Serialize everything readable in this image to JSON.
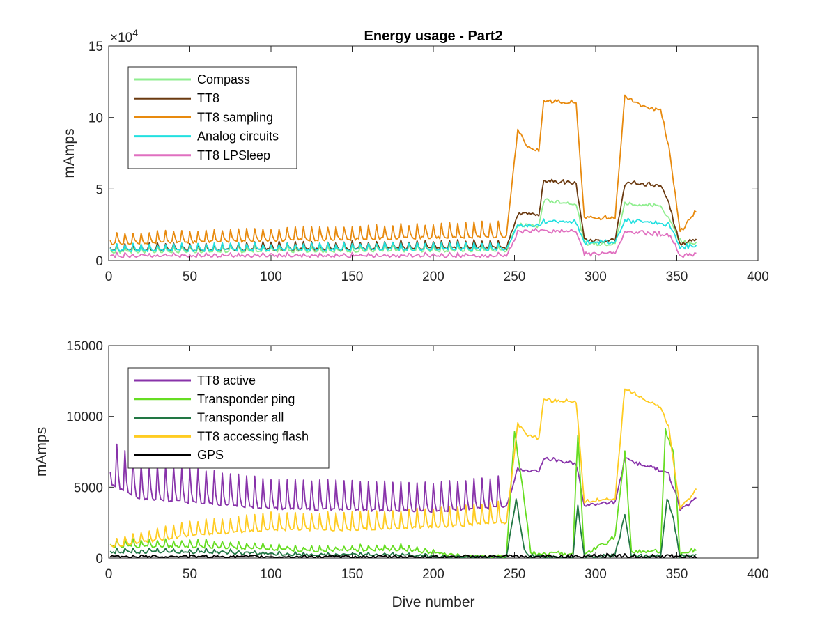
{
  "chart_data": [
    {
      "type": "line",
      "title": "Energy usage - Part2",
      "xlabel": "",
      "ylabel": "mAmps",
      "xlim": [
        0,
        400
      ],
      "ylim": [
        0,
        150000
      ],
      "xticks": [
        0,
        50,
        100,
        150,
        200,
        250,
        300,
        350,
        400
      ],
      "yticks": [
        0,
        50000,
        100000,
        150000
      ],
      "ytick_labels": [
        "0",
        "5",
        "10",
        "15"
      ],
      "exponent_label": "×10",
      "exponent_power": "4",
      "grid": false,
      "legend_position": "top-left",
      "series": [
        {
          "name": "Compass",
          "color": "#90ee90",
          "points": [
            [
              1,
              6000
            ],
            [
              245,
              7000
            ],
            [
              252,
              25000
            ],
            [
              265,
              24000
            ],
            [
              268,
              42000
            ],
            [
              288,
              40000
            ],
            [
              293,
              12000
            ],
            [
              312,
              12000
            ],
            [
              318,
              40000
            ],
            [
              340,
              38000
            ],
            [
              345,
              30000
            ],
            [
              352,
              14000
            ],
            [
              362,
              12000
            ]
          ]
        },
        {
          "name": "TT8",
          "color": "#6b3a10",
          "points": [
            [
              1,
              7000
            ],
            [
              245,
              9000
            ],
            [
              252,
              33000
            ],
            [
              265,
              32000
            ],
            [
              268,
              56000
            ],
            [
              288,
              54000
            ],
            [
              293,
              14000
            ],
            [
              312,
              14000
            ],
            [
              318,
              54000
            ],
            [
              340,
              53000
            ],
            [
              345,
              40000
            ],
            [
              352,
              11000
            ],
            [
              362,
              15000
            ]
          ]
        },
        {
          "name": "TT8 sampling",
          "color": "#e88a0e",
          "points": [
            [
              1,
              12000
            ],
            [
              245,
              17000
            ],
            [
              252,
              92000
            ],
            [
              258,
              80000
            ],
            [
              265,
              76000
            ],
            [
              268,
              112000
            ],
            [
              288,
              110000
            ],
            [
              293,
              30000
            ],
            [
              312,
              30000
            ],
            [
              318,
              115000
            ],
            [
              330,
              108000
            ],
            [
              340,
              105000
            ],
            [
              345,
              80000
            ],
            [
              352,
              20000
            ],
            [
              362,
              35000
            ]
          ]
        },
        {
          "name": "Analog circuits",
          "color": "#22e0e0",
          "points": [
            [
              1,
              7000
            ],
            [
              245,
              8000
            ],
            [
              252,
              24000
            ],
            [
              265,
              25000
            ],
            [
              268,
              28000
            ],
            [
              288,
              27000
            ],
            [
              293,
              13000
            ],
            [
              312,
              13000
            ],
            [
              318,
              28000
            ],
            [
              340,
              26000
            ],
            [
              345,
              25000
            ],
            [
              352,
              10000
            ],
            [
              362,
              10000
            ]
          ]
        },
        {
          "name": "TT8 LPSleep",
          "color": "#e070c0",
          "points": [
            [
              1,
              3000
            ],
            [
              245,
              3000
            ],
            [
              252,
              20000
            ],
            [
              265,
              21000
            ],
            [
              268,
              21000
            ],
            [
              288,
              20000
            ],
            [
              293,
              5000
            ],
            [
              312,
              5000
            ],
            [
              318,
              20000
            ],
            [
              340,
              19000
            ],
            [
              345,
              18000
            ],
            [
              352,
              4000
            ],
            [
              362,
              4000
            ]
          ]
        }
      ]
    },
    {
      "type": "line",
      "title": "",
      "xlabel": "Dive number",
      "ylabel": "mAmps",
      "xlim": [
        0,
        400
      ],
      "ylim": [
        0,
        15000
      ],
      "xticks": [
        0,
        50,
        100,
        150,
        200,
        250,
        300,
        350,
        400
      ],
      "yticks": [
        0,
        5000,
        10000,
        15000
      ],
      "ytick_labels": [
        "0",
        "5000",
        "10000",
        "15000"
      ],
      "grid": false,
      "legend_position": "top-left",
      "series": [
        {
          "name": "TT8 active",
          "color": "#8833aa",
          "points": [
            [
              1,
              5200
            ],
            [
              5,
              5000
            ],
            [
              20,
              4200
            ],
            [
              100,
              3500
            ],
            [
              200,
              3300
            ],
            [
              245,
              3600
            ],
            [
              252,
              6300
            ],
            [
              265,
              6100
            ],
            [
              268,
              7000
            ],
            [
              288,
              6700
            ],
            [
              293,
              3700
            ],
            [
              312,
              4000
            ],
            [
              318,
              7000
            ],
            [
              340,
              6200
            ],
            [
              345,
              6000
            ],
            [
              352,
              3500
            ],
            [
              362,
              4200
            ]
          ]
        },
        {
          "name": "Transponder ping",
          "color": "#66dd22",
          "points": [
            [
              1,
              800
            ],
            [
              60,
              800
            ],
            [
              120,
              500
            ],
            [
              180,
              600
            ],
            [
              220,
              100
            ],
            [
              245,
              100
            ],
            [
              250,
              9000
            ],
            [
              255,
              5000
            ],
            [
              260,
              300
            ],
            [
              286,
              300
            ],
            [
              289,
              8800
            ],
            [
              293,
              200
            ],
            [
              312,
              1500
            ],
            [
              318,
              7500
            ],
            [
              322,
              500
            ],
            [
              340,
              500
            ],
            [
              343,
              9000
            ],
            [
              348,
              7500
            ],
            [
              352,
              200
            ],
            [
              362,
              600
            ]
          ]
        },
        {
          "name": "Transponder all",
          "color": "#227744",
          "points": [
            [
              1,
              400
            ],
            [
              60,
              400
            ],
            [
              120,
              200
            ],
            [
              180,
              200
            ],
            [
              220,
              50
            ],
            [
              245,
              50
            ],
            [
              251,
              4200
            ],
            [
              256,
              600
            ],
            [
              260,
              100
            ],
            [
              286,
              100
            ],
            [
              289,
              3700
            ],
            [
              293,
              100
            ],
            [
              312,
              200
            ],
            [
              318,
              3000
            ],
            [
              322,
              150
            ],
            [
              340,
              150
            ],
            [
              344,
              4200
            ],
            [
              348,
              2700
            ],
            [
              352,
              100
            ],
            [
              362,
              200
            ]
          ]
        },
        {
          "name": "TT8 accessing flash",
          "color": "#ffcc22",
          "points": [
            [
              1,
              800
            ],
            [
              50,
              1600
            ],
            [
              100,
              2000
            ],
            [
              150,
              2000
            ],
            [
              200,
              2200
            ],
            [
              245,
              2500
            ],
            [
              252,
              9500
            ],
            [
              258,
              8700
            ],
            [
              265,
              8500
            ],
            [
              268,
              11200
            ],
            [
              288,
              11000
            ],
            [
              293,
              4000
            ],
            [
              312,
              4200
            ],
            [
              318,
              12000
            ],
            [
              340,
              10600
            ],
            [
              345,
              9200
            ],
            [
              352,
              3500
            ],
            [
              362,
              4800
            ]
          ]
        },
        {
          "name": "GPS",
          "color": "#000000",
          "points": [
            [
              1,
              100
            ],
            [
              50,
              100
            ],
            [
              100,
              80
            ],
            [
              150,
              80
            ],
            [
              200,
              80
            ],
            [
              250,
              100
            ],
            [
              300,
              150
            ],
            [
              350,
              100
            ],
            [
              362,
              100
            ]
          ]
        }
      ]
    }
  ]
}
